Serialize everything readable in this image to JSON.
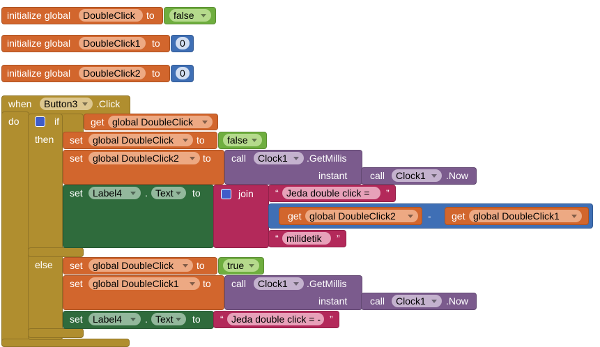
{
  "keywords": {
    "initialize_global": "initialize global",
    "to": "to",
    "set": "set",
    "get": "get",
    "call": "call",
    "instant": "instant",
    "when": "when",
    "do": "do",
    "if": "if",
    "then": "then",
    "else": "else",
    "join": "join",
    "minus": "-",
    "dot": ".",
    "open_quote": "“",
    "close_quote": "”"
  },
  "globals": [
    {
      "name": "DoubleClick",
      "value": "false"
    },
    {
      "name": "DoubleClick1",
      "value": 0
    },
    {
      "name": "DoubleClick2",
      "value": 0
    }
  ],
  "event": {
    "component": "Button3",
    "event": ".Click",
    "condition": "global DoubleClick",
    "then": [
      {
        "variable": "global DoubleClick",
        "value": "false"
      },
      {
        "variable": "global DoubleClick2",
        "component": "Clock1",
        "method": ".GetMillis",
        "arg_component": "Clock1",
        "arg_method": ".Now"
      },
      {
        "component": "Label4",
        "property": "Text",
        "text1": "Jeda double click = ",
        "left": "global DoubleClick2",
        "right": "global DoubleClick1",
        "text2": "milidetik"
      }
    ],
    "else": [
      {
        "variable": "global DoubleClick",
        "value": "true"
      },
      {
        "variable": "global DoubleClick1",
        "component": "Clock1",
        "method": ".GetMillis",
        "arg_component": "Clock1",
        "arg_method": ".Now"
      },
      {
        "component": "Label4",
        "property": "Text",
        "text": "Jeda double click = -"
      }
    ]
  }
}
